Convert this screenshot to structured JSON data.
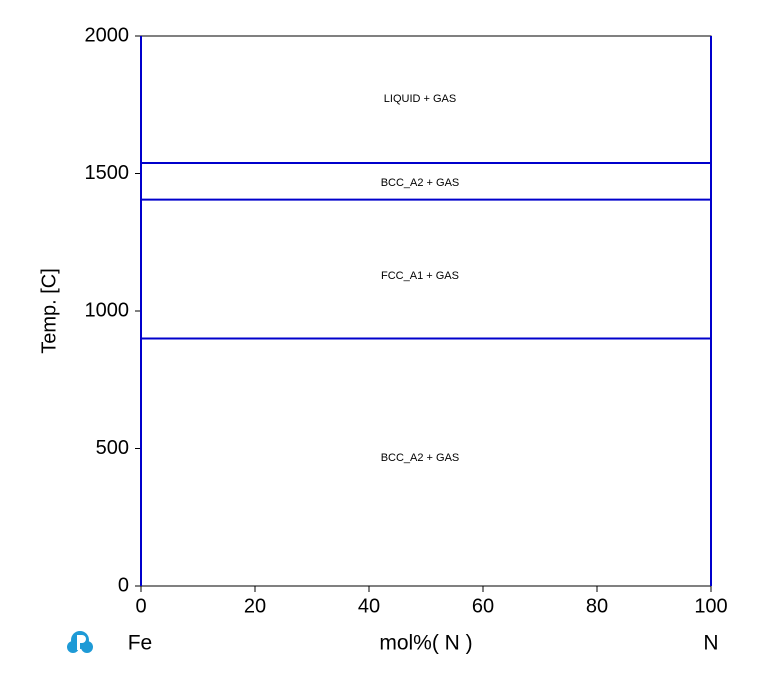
{
  "chart_data": {
    "type": "line",
    "ylabel": "Temp.  [C]",
    "xlabel": "mol%(  N  )",
    "left_label": "Fe",
    "right_label": "N",
    "xlim": [
      0,
      100
    ],
    "xticks": [
      0,
      20,
      40,
      60,
      80,
      100
    ],
    "ylim": [
      0,
      2000
    ],
    "yticks": [
      0,
      500,
      1000,
      1500,
      2000
    ],
    "annotations": [
      "LIQUID + GAS",
      "BCC_A2 + GAS",
      "FCC_A1 + GAS",
      "BCC_A2  +  GAS"
    ],
    "series": [
      {
        "color": "#0000cc",
        "x": [
          0,
          100
        ],
        "values": [
          1538,
          1538
        ]
      },
      {
        "color": "#0000cc",
        "x": [
          0,
          100
        ],
        "values": [
          1405,
          1405
        ]
      },
      {
        "color": "#0000cc",
        "x": [
          0,
          100
        ],
        "values": [
          900,
          900
        ]
      },
      {
        "color": "#0000cc",
        "x": [
          0,
          0
        ],
        "values": [
          0,
          2000
        ]
      },
      {
        "color": "#0000cc",
        "x": [
          100,
          100
        ],
        "values": [
          0,
          2000
        ]
      }
    ]
  }
}
